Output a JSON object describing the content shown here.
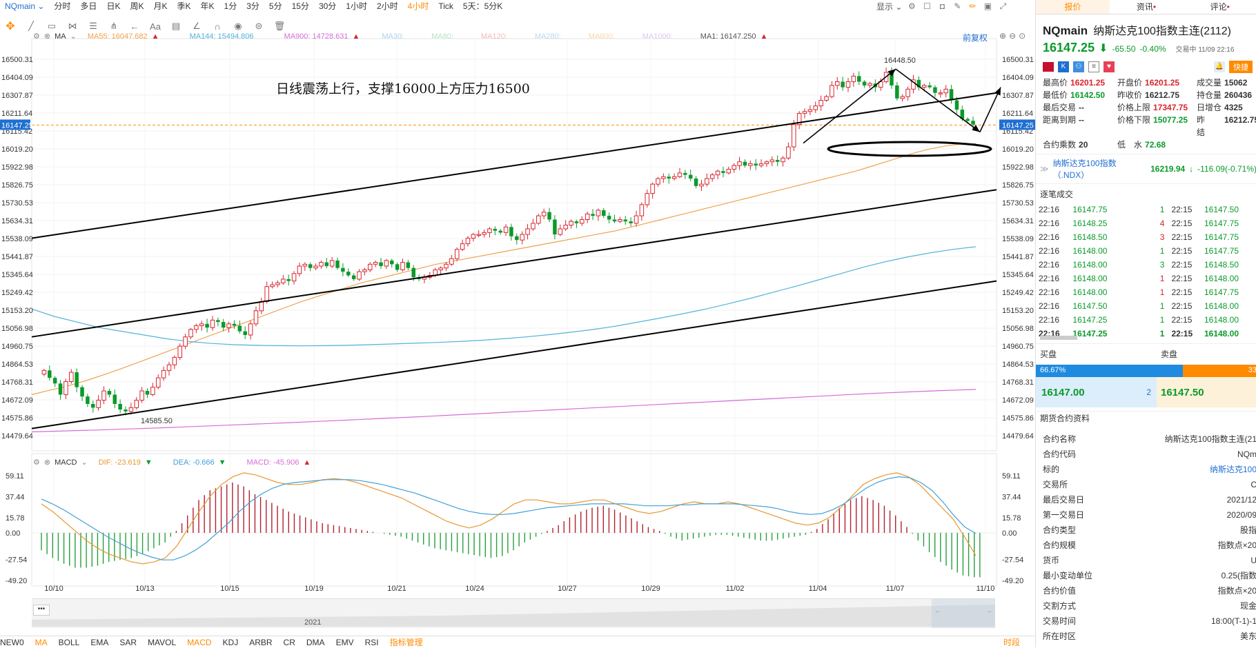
{
  "topbar": {
    "symbol": "NQmain",
    "timeframes": [
      "分时",
      "多日",
      "日K",
      "周K",
      "月K",
      "季K",
      "年K",
      "1分",
      "3分",
      "5分",
      "15分",
      "30分",
      "1小时",
      "2小时",
      "4小时",
      "Tick",
      "5天：5分K"
    ],
    "active_index": 14
  },
  "rtools": {
    "display_label": "显示"
  },
  "ma_header": {
    "label": "MA",
    "ma55": "MA55: 16047.682",
    "ma144": "MA144: 15494.806",
    "ma900": "MA900: 14728.631",
    "ma30": "MA30:",
    "ma80": "MA80:",
    "ma120": "MA120:",
    "ma280": "MA280:",
    "ma800": "MA800:",
    "ma1000": "MA1000:",
    "ma1": "MA1: 16147.250",
    "restore": "前复权"
  },
  "macd_header": {
    "label": "MACD",
    "dif": "DIF: -23.619",
    "dea": "DEA: -0.666",
    "macd": "MACD: -45.906"
  },
  "annotation_text": "日线震荡上行，支撑16000上方压力16500",
  "high_label": "16448.50",
  "low_label": "14585.50",
  "scrollbar_year": "2021",
  "colors": {
    "up": "#d9232d",
    "down": "#0a9a2a",
    "ma55": "#f0a04b",
    "ma144": "#4fb3d9",
    "ma900": "#d56cd6",
    "dif": "#e8962e",
    "dea": "#3fa0d8",
    "macd_pos": "#b0202c",
    "macd_neg": "#25a03a",
    "accent": "#ff8a00",
    "price_badge": "#1f6fd1"
  },
  "chart_data": [
    {
      "type": "candlestick",
      "title": "",
      "ylim": [
        14479.64,
        16500.31
      ],
      "y_ticks": [
        "16500.31",
        "16404.09",
        "16307.87",
        "16211.64",
        "16115.42",
        "16019.20",
        "15922.98",
        "15826.75",
        "15730.53",
        "15634.31",
        "15538.09",
        "15441.87",
        "15345.64",
        "15249.42",
        "15153.20",
        "15056.98",
        "14960.75",
        "14864.53",
        "14768.31",
        "14672.09",
        "14575.86",
        "14479.64"
      ],
      "current_price": "16147.25",
      "x_ticks": [
        "10/10",
        "10/13",
        "10/15",
        "10/19",
        "10/21",
        "10/24",
        "10/27",
        "10/29",
        "11/02",
        "11/04",
        "11/07",
        "11/10"
      ],
      "close": [
        14830,
        14790,
        14760,
        14700,
        14770,
        14820,
        14740,
        14690,
        14650,
        14630,
        14670,
        14720,
        14700,
        14650,
        14620,
        14610,
        14630,
        14670,
        14720,
        14700,
        14740,
        14790,
        14830,
        14860,
        14900,
        14960,
        15010,
        15050,
        15070,
        15080,
        15060,
        15100,
        15090,
        15060,
        15080,
        15070,
        15040,
        15020,
        15080,
        15150,
        15200,
        15280,
        15290,
        15300,
        15320,
        15310,
        15350,
        15390,
        15400,
        15380,
        15390,
        15410,
        15390,
        15420,
        15380,
        15360,
        15340,
        15320,
        15360,
        15370,
        15400,
        15410,
        15390,
        15420,
        15400,
        15370,
        15410,
        15380,
        15330,
        15320,
        15330,
        15340,
        15370,
        15380,
        15400,
        15430,
        15480,
        15510,
        15540,
        15560,
        15560,
        15570,
        15590,
        15580,
        15570,
        15600,
        15550,
        15530,
        15560,
        15590,
        15620,
        15660,
        15680,
        15640,
        15560,
        15590,
        15610,
        15630,
        15620,
        15640,
        15670,
        15660,
        15690,
        15660,
        15640,
        15630,
        15640,
        15630,
        15620,
        15660,
        15720,
        15780,
        15830,
        15860,
        15870,
        15860,
        15870,
        15890,
        15880,
        15860,
        15820,
        15830,
        15860,
        15880,
        15900,
        15890,
        15910,
        15930,
        15950,
        15930,
        15940,
        15930,
        15940,
        15950,
        15960,
        15950,
        15970,
        16030,
        16150,
        16210,
        16220,
        16230,
        16250,
        16280,
        16300,
        16360,
        16380,
        16350,
        16380,
        16410,
        16380,
        16360,
        16370,
        16350,
        16380,
        16430,
        16360,
        16290,
        16300,
        16340,
        16390,
        16350,
        16360,
        16350,
        16320,
        16320,
        16340,
        16280,
        16230,
        16180,
        16170,
        16150
      ],
      "series": [
        {
          "name": "MA55",
          "values": [
            14700,
            14720,
            14738,
            14760,
            14785,
            14812,
            14840,
            14870,
            14900,
            14930,
            14960,
            14990,
            15020,
            15050,
            15080,
            15110,
            15140,
            15170,
            15200,
            15225,
            15250,
            15275,
            15300,
            15320,
            15340,
            15360,
            15380,
            15400,
            15415,
            15430,
            15445,
            15460,
            15475,
            15490,
            15505,
            15520,
            15535,
            15550,
            15565,
            15580,
            15600,
            15620,
            15640,
            15660,
            15680,
            15700,
            15720,
            15740,
            15760,
            15780,
            15800,
            15820,
            15840,
            15860,
            15880,
            15900,
            15925,
            15950,
            15975,
            16000,
            16020,
            16035,
            16045,
            16047
          ]
        },
        {
          "name": "MA144",
          "values": [
            15160,
            15120,
            15090,
            15060,
            15040,
            15020,
            15000,
            14985,
            14975,
            14968,
            14965,
            14963,
            14962,
            14963,
            14965,
            14968,
            14972,
            14976,
            14980,
            14985,
            14992,
            15000,
            15010,
            15022,
            15035,
            15050,
            15068,
            15090,
            15112,
            15135,
            15160,
            15188,
            15218,
            15250,
            15282,
            15316,
            15350,
            15384,
            15414,
            15440,
            15462,
            15480,
            15494
          ]
        },
        {
          "name": "MA900",
          "values": [
            14500,
            14505,
            14510,
            14516,
            14522,
            14529,
            14536,
            14543,
            14550,
            14558,
            14566,
            14574,
            14582,
            14591,
            14600,
            14609,
            14618,
            14627,
            14636,
            14645,
            14654,
            14663,
            14672,
            14681,
            14690,
            14699,
            14708,
            14715,
            14722,
            14728
          ]
        }
      ],
      "annotations": {
        "period_high": 16448.5,
        "period_low": 14585.5
      }
    },
    {
      "type": "bar",
      "title": "",
      "ylim": [
        -49.2,
        59.11
      ],
      "y_ticks": [
        "59.11",
        "37.44",
        "15.78",
        "0.00",
        "-27.54",
        "-49.20"
      ],
      "series": [
        {
          "name": "DIF",
          "values": [
            30,
            22,
            12,
            2,
            -8,
            -16,
            -22,
            -26,
            -30,
            -32,
            -30,
            -26,
            -14,
            4,
            22,
            38,
            50,
            58,
            62,
            60,
            56,
            52,
            50,
            50,
            52,
            55,
            56,
            55,
            52,
            48,
            44,
            40,
            36,
            30,
            24,
            18,
            12,
            8,
            5,
            8,
            14,
            22,
            30,
            34,
            34,
            32,
            30,
            30,
            32,
            34,
            34,
            30,
            26,
            22,
            20,
            22,
            26,
            30,
            32,
            30,
            30,
            32,
            30,
            26,
            22,
            18,
            14,
            10,
            8,
            10,
            16,
            26,
            38,
            50,
            56,
            60,
            62,
            58,
            50,
            38,
            26,
            14,
            -4,
            -23.619
          ]
        },
        {
          "name": "DEA",
          "values": [
            35,
            30,
            24,
            17,
            10,
            3,
            -4,
            -10,
            -16,
            -21,
            -25,
            -28,
            -28,
            -24,
            -18,
            -10,
            0,
            10,
            22,
            32,
            40,
            46,
            50,
            52,
            53,
            54,
            55,
            55,
            55,
            54,
            52,
            50,
            47,
            44,
            41,
            37,
            33,
            29,
            25,
            22,
            20,
            19,
            19,
            20,
            22,
            24,
            26,
            27,
            28,
            29,
            30,
            30,
            30,
            30,
            29,
            28,
            28,
            28,
            29,
            29,
            30,
            30,
            30,
            30,
            29,
            28,
            27,
            25,
            22,
            20,
            19,
            20,
            24,
            30,
            38,
            46,
            52,
            56,
            58,
            57,
            52,
            44,
            32,
            18,
            6,
            -0.666
          ]
        },
        {
          "name": "MACD",
          "values": [
            -18,
            -26,
            -32,
            -36,
            -36,
            -34,
            -30,
            -28,
            -26,
            -22,
            -16,
            -10,
            2,
            18,
            34,
            44,
            48,
            52,
            48,
            40,
            34,
            28,
            22,
            18,
            14,
            10,
            8,
            6,
            4,
            2,
            0,
            -2,
            -4,
            -8,
            -12,
            -16,
            -18,
            -20,
            -22,
            -24,
            -26,
            -24,
            -18,
            -10,
            -4,
            2,
            8,
            16,
            22,
            26,
            28,
            24,
            18,
            12,
            6,
            2,
            -4,
            -8,
            -6,
            -4,
            -2,
            -2,
            -4,
            -6,
            -8,
            -8,
            -6,
            -4,
            -2,
            4,
            14,
            26,
            34,
            38,
            34,
            28,
            18,
            6,
            -8,
            -20,
            -30,
            -38,
            -44,
            -45.906
          ]
        }
      ],
      "x_ticks": [
        "10/10",
        "10/13",
        "10/15",
        "10/19",
        "10/21",
        "10/24",
        "10/27",
        "10/29",
        "11/02",
        "11/04",
        "11/07",
        "11/10"
      ]
    }
  ],
  "indicator_bar": {
    "items": [
      "NEW0",
      "MA",
      "BOLL",
      "EMA",
      "SAR",
      "MAVOL",
      "MACD",
      "KDJ",
      "ARBR",
      "CR",
      "DMA",
      "EMV",
      "RSI",
      "指标管理"
    ],
    "active": [
      "MA",
      "MACD"
    ],
    "right": "时段"
  },
  "right_panel": {
    "tabs": [
      "报价",
      "资讯",
      "评论"
    ],
    "title": "NQmain",
    "name": "纳斯达克100指数主连(2112)",
    "price": "16147.25",
    "change": "-65.50",
    "change_pct": "-0.40%",
    "trade_time": "交易中 11/09 22:16",
    "quick": "快捷",
    "stats": [
      {
        "k": "最高价",
        "v": "16201.25",
        "c": "red"
      },
      {
        "k": "开盘价",
        "v": "16201.25",
        "c": "red"
      },
      {
        "k": "成交量",
        "v": "15062",
        "c": "plain"
      },
      {
        "k": "最低价",
        "v": "16142.50",
        "c": "grn"
      },
      {
        "k": "昨收价",
        "v": "16212.75",
        "c": "plain"
      },
      {
        "k": "持仓量",
        "v": "260436",
        "c": "plain"
      },
      {
        "k": "最后交易",
        "v": "--",
        "c": "plain"
      },
      {
        "k": "价格上限",
        "v": "17347.75",
        "c": "red"
      },
      {
        "k": "日增仓",
        "v": "4325",
        "c": "plain"
      },
      {
        "k": "距离到期",
        "v": "--",
        "c": "plain"
      },
      {
        "k": "价格下限",
        "v": "15077.25",
        "c": "grn"
      },
      {
        "k": "昨　结",
        "v": "16212.75",
        "c": "plain"
      },
      {
        "k": "合约乘数",
        "v": "20",
        "c": "plain"
      },
      {
        "k": "低　水",
        "v": "72.68",
        "c": "grn"
      }
    ],
    "ndx_label": "纳斯达克100指数（.NDX）",
    "ndx_value": "16219.94",
    "ndx_change": "-116.09(-0.71%)",
    "trades_title": "逐笔成交",
    "trades": [
      [
        "22:16",
        "16147.75",
        "1",
        "22:15",
        "16147.50",
        "grn",
        "grn"
      ],
      [
        "22:16",
        "16148.25",
        "4",
        "22:15",
        "16147.75",
        "red",
        "grn"
      ],
      [
        "22:16",
        "16148.50",
        "3",
        "22:15",
        "16147.75",
        "red",
        "grn"
      ],
      [
        "22:16",
        "16148.00",
        "1",
        "22:15",
        "16147.75",
        "grn",
        "grn"
      ],
      [
        "22:16",
        "16148.00",
        "3",
        "22:15",
        "16148.50",
        "grn",
        "grn"
      ],
      [
        "22:16",
        "16148.00",
        "1",
        "22:15",
        "16148.00",
        "red",
        "grn"
      ],
      [
        "22:16",
        "16148.00",
        "1",
        "22:15",
        "16147.75",
        "red",
        "grn"
      ],
      [
        "22:16",
        "16147.50",
        "1",
        "22:15",
        "16148.00",
        "grn",
        "grn"
      ],
      [
        "22:16",
        "16147.25",
        "1",
        "22:15",
        "16148.00",
        "grn",
        "grn"
      ],
      [
        "22:16",
        "16147.25",
        "1",
        "22:15",
        "16148.00",
        "grn",
        "grn"
      ]
    ],
    "buy_label": "买盘",
    "sell_label": "卖盘",
    "buy_pct": "66.67%",
    "sell_pct": "33",
    "buy_ratio": 0.6667,
    "bid_price": "16147.00",
    "bid_qty": "2",
    "ask_price": "16147.50",
    "contract_title": "期货合约资料",
    "contract": [
      [
        "合约名称",
        "纳斯达克100指数主连(21"
      ],
      [
        "合约代码",
        "NQm"
      ],
      [
        "标的",
        "纳斯达克100"
      ],
      [
        "交易所",
        "C"
      ],
      [
        "最后交易日",
        "2021/12"
      ],
      [
        "第一交易日",
        "2020/09"
      ],
      [
        "合约类型",
        "股指"
      ],
      [
        "合约规模",
        "指数点×20"
      ],
      [
        "货币",
        "U"
      ],
      [
        "最小变动单位",
        "0.25(指数"
      ],
      [
        "合约价值",
        "指数点×20"
      ],
      [
        "交割方式",
        "现金"
      ],
      [
        "交易时间",
        "18:00(T-1)-1"
      ],
      [
        "所在时区",
        "美东"
      ]
    ]
  }
}
